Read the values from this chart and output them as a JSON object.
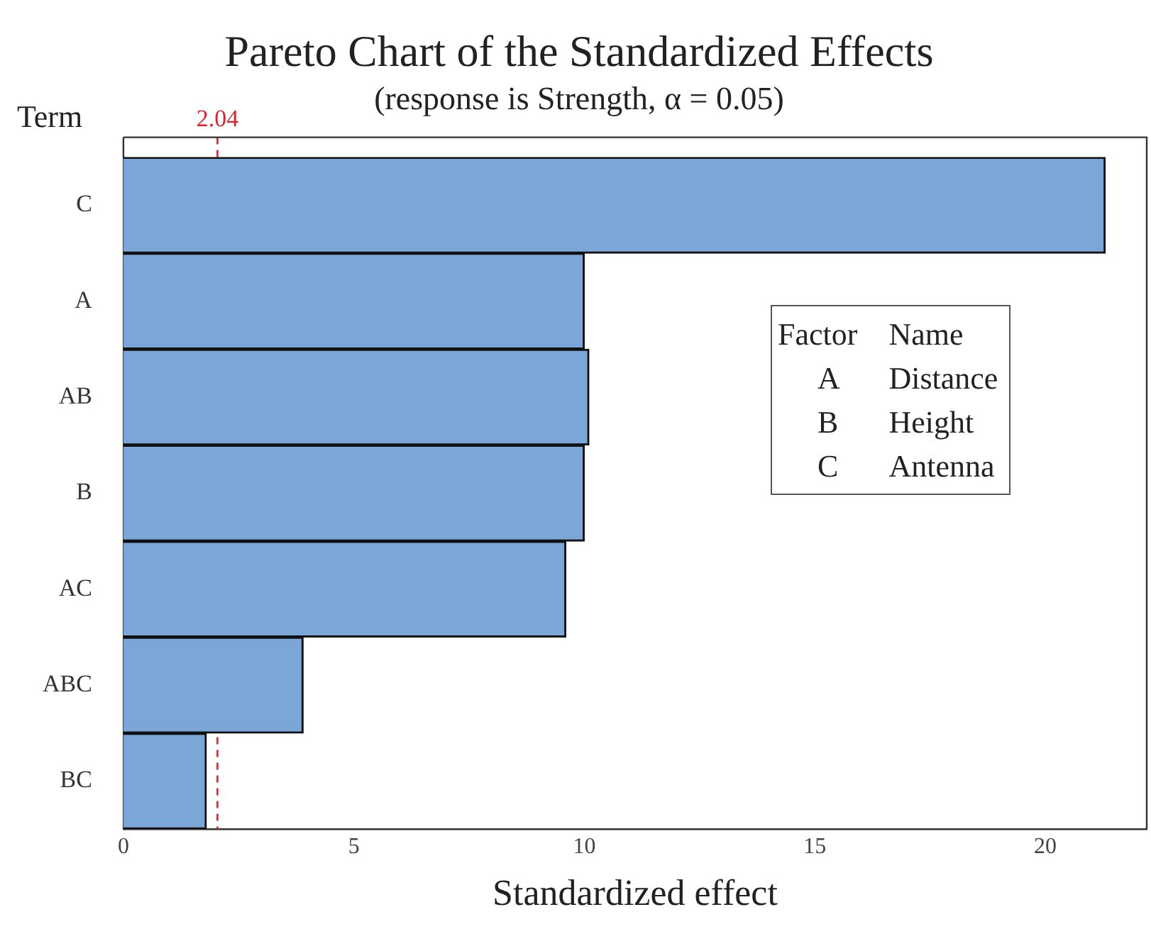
{
  "chart_data": {
    "type": "bar",
    "orientation": "horizontal",
    "title": "Pareto Chart of the Standardized Effects",
    "subtitle": "(response is Strength, α = 0.05)",
    "ylabel": "Term",
    "xlabel": "Standardized effect",
    "categories": [
      "C",
      "A",
      "AB",
      "B",
      "AC",
      "ABC",
      "BC"
    ],
    "values": [
      21.3,
      10.0,
      10.1,
      10.0,
      9.6,
      3.9,
      1.8
    ],
    "color": "#7ba6d8",
    "xlim": [
      0,
      22.2
    ],
    "xticks": [
      0,
      5,
      10,
      15,
      20
    ],
    "grid": false,
    "legend": false,
    "ref_lines": [
      {
        "axis": "x",
        "value": 2.04,
        "label": "2.04",
        "color": "#e0202a",
        "line_style": "dashed"
      }
    ],
    "annotations": [
      "Factor",
      "Name",
      "A",
      "Distance",
      "B",
      "Height",
      "C",
      "Antenna"
    ]
  }
}
